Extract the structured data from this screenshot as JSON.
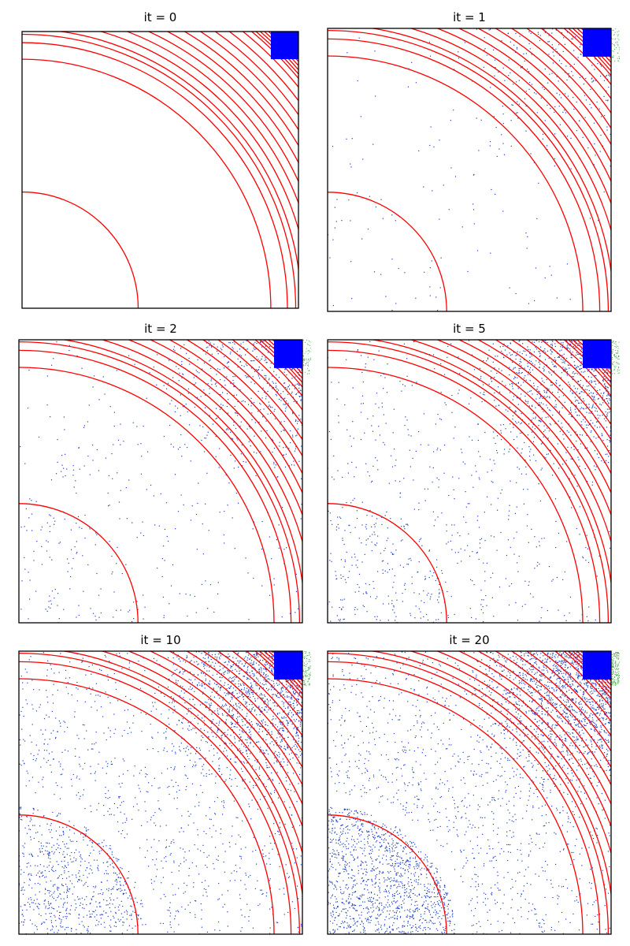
{
  "figure": {
    "colors": {
      "rings": "#ff0000",
      "source_block": "#0000ff",
      "scatter_points": "#1f3fbf",
      "overflow_points": "#4caf50",
      "frame": "#000000"
    }
  },
  "chart_data": [
    {
      "type": "scatter",
      "title": "it = 0",
      "iteration": 0,
      "xlim": [
        0,
        1
      ],
      "ylim": [
        0,
        1
      ],
      "grid": false,
      "ticks": "hidden",
      "source_region": {
        "x": [
          0.9,
          1.0
        ],
        "y": [
          0.9,
          1.0
        ]
      },
      "ring_radii": [
        0.42,
        0.9,
        0.96,
        0.99,
        1.01,
        1.04,
        1.07,
        1.1,
        1.13,
        1.16,
        1.19,
        1.22,
        1.25,
        1.28,
        1.3,
        1.31,
        1.32,
        1.33,
        1.34,
        1.35,
        1.36,
        1.39,
        1.44,
        1.48,
        1.52,
        1.56,
        1.59,
        1.62,
        1.64,
        1.65,
        1.66,
        1.67,
        1.68,
        1.69,
        1.7,
        1.72,
        1.76
      ],
      "particle_density": {
        "source_zone": 0,
        "mid_band": 0,
        "core": 0
      }
    },
    {
      "type": "scatter",
      "title": "it = 1",
      "iteration": 1,
      "xlim": [
        0,
        1
      ],
      "ylim": [
        0,
        1
      ],
      "grid": false,
      "ticks": "hidden",
      "source_region": {
        "x": [
          0.9,
          1.0
        ],
        "y": [
          0.9,
          1.0
        ]
      },
      "ring_radii": [
        0.42,
        0.9,
        0.96,
        0.99,
        1.01,
        1.04,
        1.07,
        1.1,
        1.13,
        1.16,
        1.19,
        1.22,
        1.25,
        1.28,
        1.3,
        1.31,
        1.32,
        1.33,
        1.34,
        1.35,
        1.36,
        1.39,
        1.44,
        1.48,
        1.52,
        1.56,
        1.59,
        1.62,
        1.64,
        1.65,
        1.66,
        1.67,
        1.68,
        1.69,
        1.7,
        1.72,
        1.76
      ],
      "particle_density": {
        "source_zone": 260,
        "mid_band": 140,
        "core": 40
      }
    },
    {
      "type": "scatter",
      "title": "it = 2",
      "iteration": 2,
      "xlim": [
        0,
        1
      ],
      "ylim": [
        0,
        1
      ],
      "grid": false,
      "ticks": "hidden",
      "source_region": {
        "x": [
          0.9,
          1.0
        ],
        "y": [
          0.9,
          1.0
        ]
      },
      "ring_radii": [
        0.42,
        0.9,
        0.96,
        0.99,
        1.01,
        1.04,
        1.07,
        1.1,
        1.13,
        1.16,
        1.19,
        1.22,
        1.25,
        1.28,
        1.3,
        1.31,
        1.32,
        1.33,
        1.34,
        1.35,
        1.36,
        1.39,
        1.44,
        1.48,
        1.52,
        1.56,
        1.59,
        1.62,
        1.64,
        1.65,
        1.66,
        1.67,
        1.68,
        1.69,
        1.7,
        1.72,
        1.76
      ],
      "particle_density": {
        "source_zone": 520,
        "mid_band": 380,
        "core": 120
      }
    },
    {
      "type": "scatter",
      "title": "it = 5",
      "iteration": 5,
      "xlim": [
        0,
        1
      ],
      "ylim": [
        0,
        1
      ],
      "grid": false,
      "ticks": "hidden",
      "source_region": {
        "x": [
          0.9,
          1.0
        ],
        "y": [
          0.9,
          1.0
        ]
      },
      "ring_radii": [
        0.42,
        0.9,
        0.96,
        0.99,
        1.01,
        1.04,
        1.07,
        1.1,
        1.13,
        1.16,
        1.19,
        1.22,
        1.25,
        1.28,
        1.3,
        1.31,
        1.32,
        1.33,
        1.34,
        1.35,
        1.36,
        1.39,
        1.44,
        1.48,
        1.52,
        1.56,
        1.59,
        1.62,
        1.64,
        1.65,
        1.66,
        1.67,
        1.68,
        1.69,
        1.7,
        1.72,
        1.76
      ],
      "particle_density": {
        "source_zone": 900,
        "mid_band": 700,
        "core": 260
      }
    },
    {
      "type": "scatter",
      "title": "it = 10",
      "iteration": 10,
      "xlim": [
        0,
        1
      ],
      "ylim": [
        0,
        1
      ],
      "grid": false,
      "ticks": "hidden",
      "source_region": {
        "x": [
          0.9,
          1.0
        ],
        "y": [
          0.9,
          1.0
        ]
      },
      "ring_radii": [
        0.42,
        0.9,
        0.96,
        0.99,
        1.01,
        1.04,
        1.07,
        1.1,
        1.13,
        1.16,
        1.19,
        1.22,
        1.25,
        1.28,
        1.3,
        1.31,
        1.32,
        1.33,
        1.34,
        1.35,
        1.36,
        1.39,
        1.44,
        1.48,
        1.52,
        1.56,
        1.59,
        1.62,
        1.64,
        1.65,
        1.66,
        1.67,
        1.68,
        1.69,
        1.7,
        1.72,
        1.76
      ],
      "particle_density": {
        "source_zone": 1400,
        "mid_band": 1400,
        "core": 700
      }
    },
    {
      "type": "scatter",
      "title": "it = 20",
      "iteration": 20,
      "xlim": [
        0,
        1
      ],
      "ylim": [
        0,
        1
      ],
      "grid": false,
      "ticks": "hidden",
      "source_region": {
        "x": [
          0.9,
          1.0
        ],
        "y": [
          0.9,
          1.0
        ]
      },
      "ring_radii": [
        0.42,
        0.9,
        0.96,
        0.99,
        1.01,
        1.04,
        1.07,
        1.1,
        1.13,
        1.16,
        1.19,
        1.22,
        1.25,
        1.28,
        1.3,
        1.31,
        1.32,
        1.33,
        1.34,
        1.35,
        1.36,
        1.39,
        1.44,
        1.48,
        1.52,
        1.56,
        1.59,
        1.62,
        1.64,
        1.65,
        1.66,
        1.67,
        1.68,
        1.69,
        1.7,
        1.72,
        1.76
      ],
      "particle_density": {
        "source_zone": 1600,
        "mid_band": 1800,
        "core": 1300
      }
    }
  ]
}
